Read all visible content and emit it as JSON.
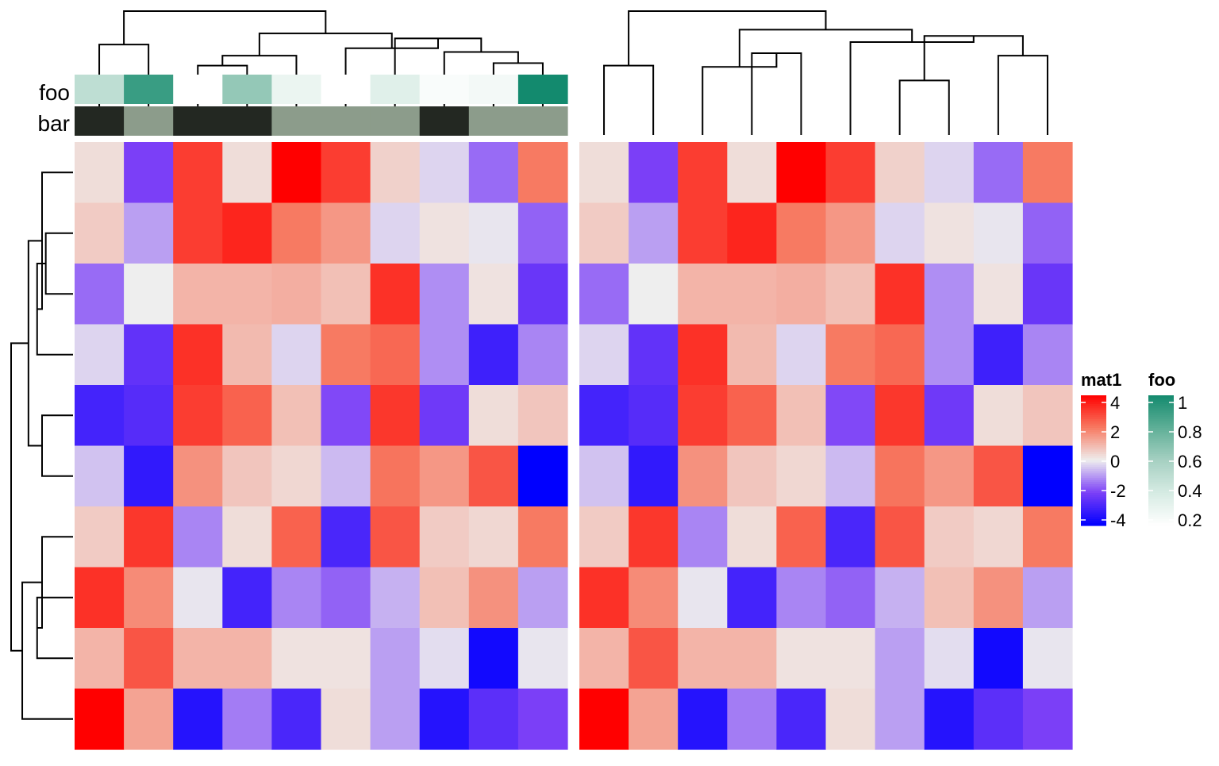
{
  "chart_data": {
    "type": "heatmap",
    "matrix_name": "mat1",
    "values": [
      [
        0.3,
        -2.0,
        3.0,
        0.3,
        4.0,
        3.0,
        0.5,
        -0.3,
        -1.5,
        2.0
      ],
      [
        0.6,
        -0.9,
        3.0,
        3.4,
        2.0,
        1.5,
        -0.3,
        0.2,
        -0.1,
        -1.6
      ],
      [
        -1.5,
        0.0,
        1.0,
        1.0,
        1.1,
        0.8,
        3.2,
        -1.1,
        0.2,
        -2.3
      ],
      [
        -0.3,
        -2.4,
        3.2,
        0.9,
        -0.3,
        2.0,
        2.3,
        -1.1,
        -3.0,
        -1.2
      ],
      [
        -2.9,
        -2.6,
        3.0,
        2.4,
        0.8,
        -1.9,
        3.1,
        -2.2,
        0.3,
        0.7
      ],
      [
        -0.5,
        -3.2,
        1.6,
        0.7,
        0.4,
        -0.6,
        2.1,
        1.5,
        2.6,
        -4.0
      ],
      [
        0.6,
        3.1,
        -1.2,
        0.3,
        2.4,
        -2.8,
        2.6,
        0.6,
        0.4,
        2.0
      ],
      [
        3.2,
        1.7,
        -0.1,
        -2.9,
        -1.2,
        -1.6,
        -0.7,
        0.8,
        1.6,
        -0.9
      ],
      [
        1.0,
        2.6,
        1.0,
        1.0,
        0.2,
        0.2,
        -0.9,
        -0.2,
        -3.7,
        -0.1
      ],
      [
        4.0,
        1.3,
        -3.4,
        -1.3,
        -2.8,
        0.3,
        -0.9,
        -3.4,
        -2.5,
        -2.0
      ]
    ],
    "color_scale": {
      "breaks": [
        -4,
        -2,
        0,
        2,
        4
      ],
      "colors": [
        "#0000ff",
        "#7b3ff7",
        "#eeeeee",
        "#f77a62",
        "#ff0000"
      ]
    },
    "annotations": {
      "foo": {
        "label": "foo",
        "values": [
          0.5,
          0.9,
          0.0,
          0.65,
          0.3,
          0.2,
          0.35,
          0.23,
          0.26,
          1.0
        ],
        "color_scale": {
          "breaks": [
            0.2,
            0.4,
            0.6,
            0.8,
            1.0
          ],
          "colors": [
            "#ffffff",
            "#d6ebe3",
            "#a6d0c2",
            "#5faf97",
            "#138a6e"
          ]
        },
        "missing_color": "#ffffff"
      },
      "bar": {
        "label": "bar",
        "values": [
          "a",
          "b",
          "a",
          "a",
          "b",
          "b",
          "b",
          "a",
          "b",
          "b"
        ],
        "colors": {
          "a": "#232822",
          "b": "#8c9c8b"
        }
      }
    },
    "legends": [
      {
        "title": "mat1",
        "tick_labels": [
          "4",
          "2",
          "0",
          "-2",
          "-4"
        ]
      },
      {
        "title": "foo",
        "tick_labels": [
          "1",
          "0.8",
          "0.6",
          "0.4",
          "0.2"
        ]
      }
    ],
    "panels": 2,
    "row_dendrogram": true,
    "column_dendrograms": true
  }
}
